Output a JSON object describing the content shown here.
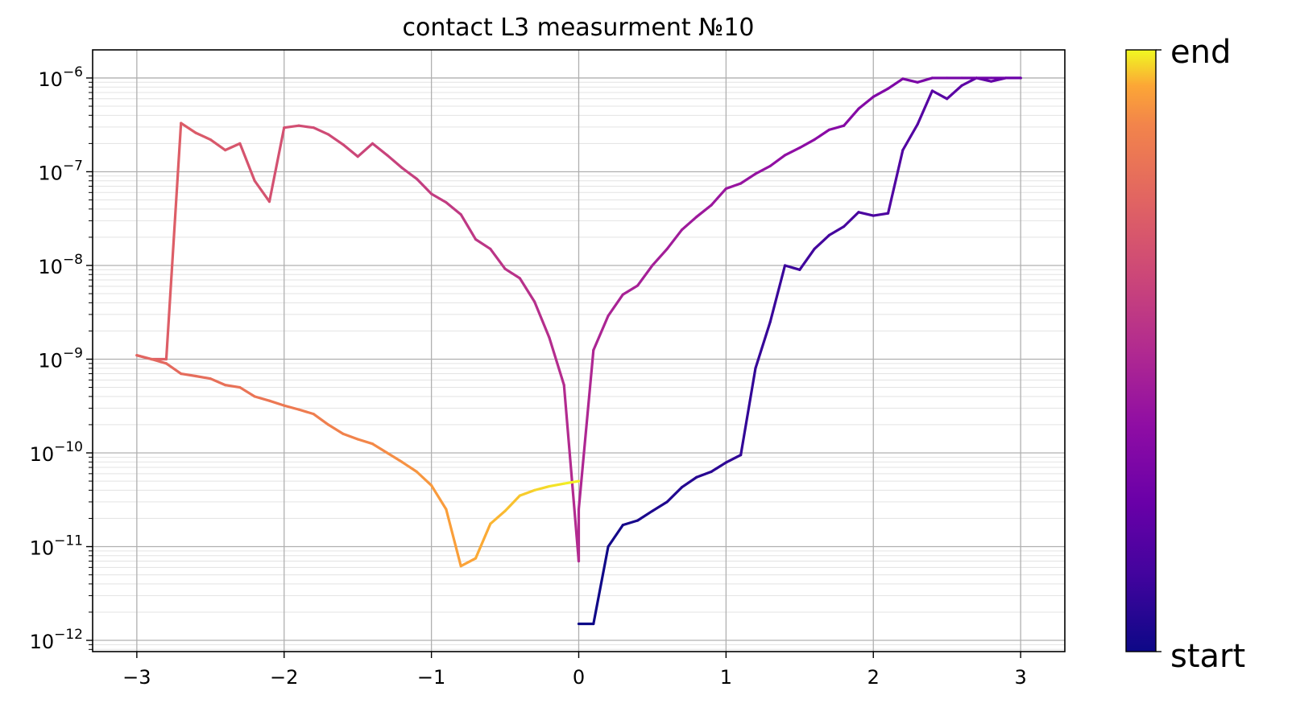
{
  "chart_data": {
    "type": "line",
    "title": "contact L3 measurment №10",
    "xlabel": "",
    "ylabel": "",
    "xlim": [
      -3.3,
      3.3
    ],
    "ylim_log10": [
      -12.12,
      -5.7
    ],
    "yscale": "log",
    "grid": true,
    "xticks": [
      {
        "value": -3,
        "label": "−3"
      },
      {
        "value": -2,
        "label": "−2"
      },
      {
        "value": -1,
        "label": "−1"
      },
      {
        "value": 0,
        "label": "0"
      },
      {
        "value": 1,
        "label": "1"
      },
      {
        "value": 2,
        "label": "2"
      },
      {
        "value": 3,
        "label": "3"
      }
    ],
    "yticks": [
      {
        "exp": -6,
        "base": "10",
        "sup": "−6"
      },
      {
        "exp": -7,
        "base": "10",
        "sup": "−7"
      },
      {
        "exp": -8,
        "base": "10",
        "sup": "−8"
      },
      {
        "exp": -9,
        "base": "10",
        "sup": "−9"
      },
      {
        "exp": -10,
        "base": "10",
        "sup": "−10"
      },
      {
        "exp": -11,
        "base": "10",
        "sup": "−11"
      },
      {
        "exp": -12,
        "base": "10",
        "sup": "−12"
      }
    ],
    "colormap": "plasma",
    "colorbar": {
      "top_label": "end",
      "bottom_label": "start"
    },
    "series": [
      {
        "segment": "0 to 3 (forward)",
        "x": [
          0,
          0.1,
          0.2,
          0.3,
          0.4,
          0.5,
          0.6,
          0.7,
          0.8,
          0.9,
          1.0,
          1.1,
          1.2,
          1.3,
          1.4,
          1.5,
          1.6,
          1.7,
          1.8,
          1.9,
          2.0,
          2.1,
          2.2,
          2.3,
          2.4,
          2.5,
          2.6,
          2.7,
          2.8,
          2.9,
          3.0
        ],
        "y": [
          1.5e-12,
          1.5e-12,
          1e-11,
          1.7e-11,
          1.9e-11,
          2.4e-11,
          3e-11,
          4.3e-11,
          5.5e-11,
          6.3e-11,
          7.9e-11,
          9.5e-11,
          8e-10,
          2.5e-09,
          1e-08,
          9e-09,
          1.5e-08,
          2.1e-08,
          2.6e-08,
          3.7e-08,
          3.4e-08,
          3.6e-08,
          1.7e-07,
          3.2e-07,
          7.3e-07,
          6e-07,
          8.3e-07,
          1e-06,
          9.2e-07,
          1e-06,
          1e-06
        ]
      },
      {
        "segment": "3 to 0 (return)",
        "x": [
          3.0,
          2.9,
          2.8,
          2.7,
          2.6,
          2.5,
          2.4,
          2.3,
          2.2,
          2.1,
          2.0,
          1.9,
          1.8,
          1.7,
          1.6,
          1.5,
          1.4,
          1.3,
          1.2,
          1.1,
          1.0,
          0.9,
          0.8,
          0.7,
          0.6,
          0.5,
          0.4,
          0.3,
          0.2,
          0.1,
          0
        ],
        "y": [
          1e-06,
          1e-06,
          1e-06,
          1e-06,
          1e-06,
          1e-06,
          1e-06,
          9e-07,
          9.8e-07,
          7.7e-07,
          6.3e-07,
          4.7e-07,
          3.1e-07,
          2.8e-07,
          2.2e-07,
          1.8e-07,
          1.5e-07,
          1.15e-07,
          9.5e-08,
          7.5e-08,
          6.6e-08,
          4.4e-08,
          3.3e-08,
          2.4e-08,
          1.5e-08,
          1e-08,
          6.1e-09,
          4.9e-09,
          2.9e-09,
          1.25e-09,
          2.5e-11
        ]
      },
      {
        "segment": "0 to -3 (forward)",
        "x": [
          0,
          -0.1,
          -0.2,
          -0.3,
          -0.4,
          -0.5,
          -0.6,
          -0.7,
          -0.8,
          -0.9,
          -1.0,
          -1.1,
          -1.2,
          -1.3,
          -1.4,
          -1.5,
          -1.6,
          -1.7,
          -1.8,
          -1.9,
          -2.0,
          -2.1,
          -2.2,
          -2.3,
          -2.4,
          -2.5,
          -2.6,
          -2.7,
          -2.8,
          -2.9,
          -3.0
        ],
        "y": [
          7e-12,
          5.3e-10,
          1.7e-09,
          4.1e-09,
          7.3e-09,
          9.2e-09,
          1.5e-08,
          1.9e-08,
          3.5e-08,
          4.7e-08,
          5.8e-08,
          8.4e-08,
          1.1e-07,
          1.5e-07,
          2e-07,
          1.45e-07,
          1.95e-07,
          2.5e-07,
          2.95e-07,
          3.1e-07,
          2.95e-07,
          4.8e-08,
          8e-08,
          2e-07,
          1.7e-07,
          2.2e-07,
          2.6e-07,
          3.3e-07,
          1e-09,
          1e-09,
          1.1e-09
        ]
      },
      {
        "segment": "-3 to 0 (return)",
        "x": [
          -3.0,
          -2.9,
          -2.8,
          -2.7,
          -2.6,
          -2.5,
          -2.4,
          -2.3,
          -2.2,
          -2.1,
          -2.0,
          -1.9,
          -1.8,
          -1.7,
          -1.6,
          -1.5,
          -1.4,
          -1.3,
          -1.2,
          -1.1,
          -1.0,
          -0.9,
          -0.8,
          -0.7,
          -0.6,
          -0.5,
          -0.4,
          -0.3,
          -0.2,
          -0.1,
          0
        ],
        "y": [
          1.1e-09,
          1e-09,
          9e-10,
          7e-10,
          6.6e-10,
          6.2e-10,
          5.3e-10,
          5e-10,
          4e-10,
          3.6e-10,
          3.2e-10,
          2.9e-10,
          2.6e-10,
          2e-10,
          1.6e-10,
          1.4e-10,
          1.25e-10,
          1e-10,
          8e-11,
          6.3e-11,
          4.5e-11,
          2.5e-11,
          6.2e-12,
          7.5e-12,
          1.75e-11,
          2.4e-11,
          3.5e-11,
          4e-11,
          4.4e-11,
          4.7e-11,
          5e-11
        ]
      }
    ]
  }
}
